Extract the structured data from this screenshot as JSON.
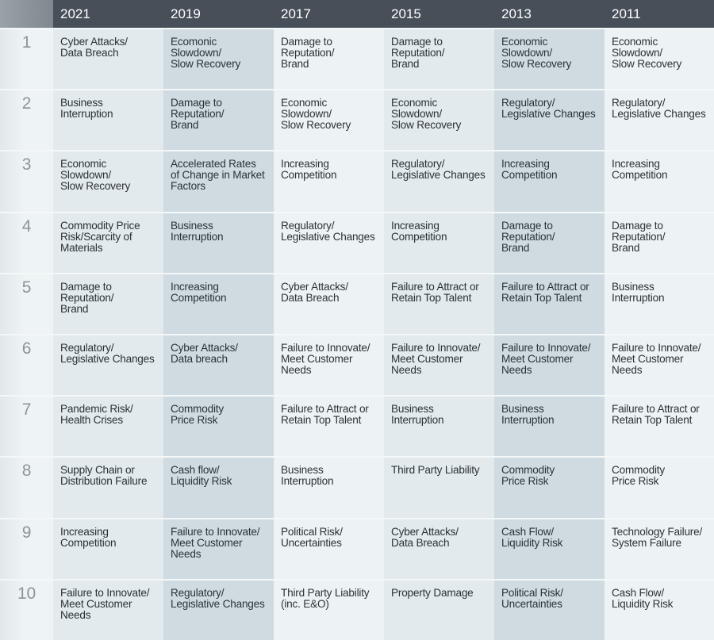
{
  "years": [
    "2021",
    "2019",
    "2017",
    "2015",
    "2013",
    "2011"
  ],
  "rows": [
    {
      "rank": "1",
      "cells": [
        "Cyber Attacks/\nData Breach",
        "Ecomonic\nSlowdown/\nSlow Recovery",
        "Damage to\nReputation/\nBrand",
        "Damage to\nReputation/\nBrand",
        "Economic\nSlowdown/\nSlow Recovery",
        "Economic\nSlowdown/\nSlow Recovery"
      ]
    },
    {
      "rank": "2",
      "cells": [
        "Business\nInterruption",
        "Damage to\nReputation/\nBrand",
        "Economic\nSlowdown/\nSlow Recovery",
        "Economic\nSlowdown/\nSlow Recovery",
        "Regulatory/\nLegislative Changes",
        "Regulatory/\nLegislative Changes"
      ]
    },
    {
      "rank": "3",
      "cells": [
        "Economic\nSlowdown/\nSlow Recovery",
        "Accelerated Rates\nof Change in Market\nFactors",
        "Increasing\nCompetition",
        "Regulatory/\nLegislative Changes",
        "Increasing\nCompetition",
        "Increasing\nCompetition"
      ]
    },
    {
      "rank": "4",
      "cells": [
        "Commodity Price\nRisk/Scarcity of\nMaterials",
        "Business\nInterruption",
        "Regulatory/\nLegislative Changes",
        "Increasing\nCompetition",
        "Damage to\nReputation/\nBrand",
        "Damage to\nReputation/\nBrand"
      ]
    },
    {
      "rank": "5",
      "cells": [
        "Damage to\nReputation/\nBrand",
        "Increasing\nCompetition",
        "Cyber Attacks/\nData Breach",
        "Failure to Attract or\nRetain Top Talent",
        "Failure to Attract or\nRetain Top Talent",
        "Business\nInterruption"
      ]
    },
    {
      "rank": "6",
      "cells": [
        "Regulatory/\nLegislative Changes",
        "Cyber Attacks/\nData breach",
        "Failure to Innovate/\nMeet Customer\nNeeds",
        "Failure to Innovate/\nMeet Customer\nNeeds",
        "Failure to Innovate/\nMeet Customer\nNeeds",
        "Failure to Innovate/\nMeet Customer\nNeeds"
      ]
    },
    {
      "rank": "7",
      "cells": [
        "Pandemic Risk/\nHealth Crises",
        "Commodity\nPrice Risk",
        "Failure to Attract or\nRetain Top Talent",
        "Business\nInterruption",
        "Business\nInterruption",
        "Failure to Attract or\nRetain Top Talent"
      ]
    },
    {
      "rank": "8",
      "cells": [
        "Supply Chain or\nDistribution Failure",
        "Cash flow/\nLiquidity Risk",
        "Business\nInterruption",
        "Third Party Liability",
        "Commodity\nPrice Risk",
        "Commodity\nPrice Risk"
      ]
    },
    {
      "rank": "9",
      "cells": [
        "Increasing\nCompetition",
        "Failure to Innovate/\nMeet Customer\nNeeds",
        "Political Risk/\nUncertainties",
        "Cyber Attacks/\nData Breach",
        "Cash Flow/\nLiquidity Risk",
        "Technology Failure/\nSystem Failure"
      ]
    },
    {
      "rank": "10",
      "cells": [
        "Failure to Innovate/\nMeet Customer\nNeeds",
        "Regulatory/\nLegislative Changes",
        "Third Party Liability\n(inc. E&O)",
        "Property Damage",
        "Political Risk/\nUncertainties",
        "Cash Flow/\nLiquidity Risk"
      ]
    }
  ],
  "colors": {
    "header": "#474f58",
    "column_light": "#edf3f5",
    "column_mid": "#e2eaed",
    "column_dark": "#cfdbe0",
    "text": "#2b3237"
  }
}
